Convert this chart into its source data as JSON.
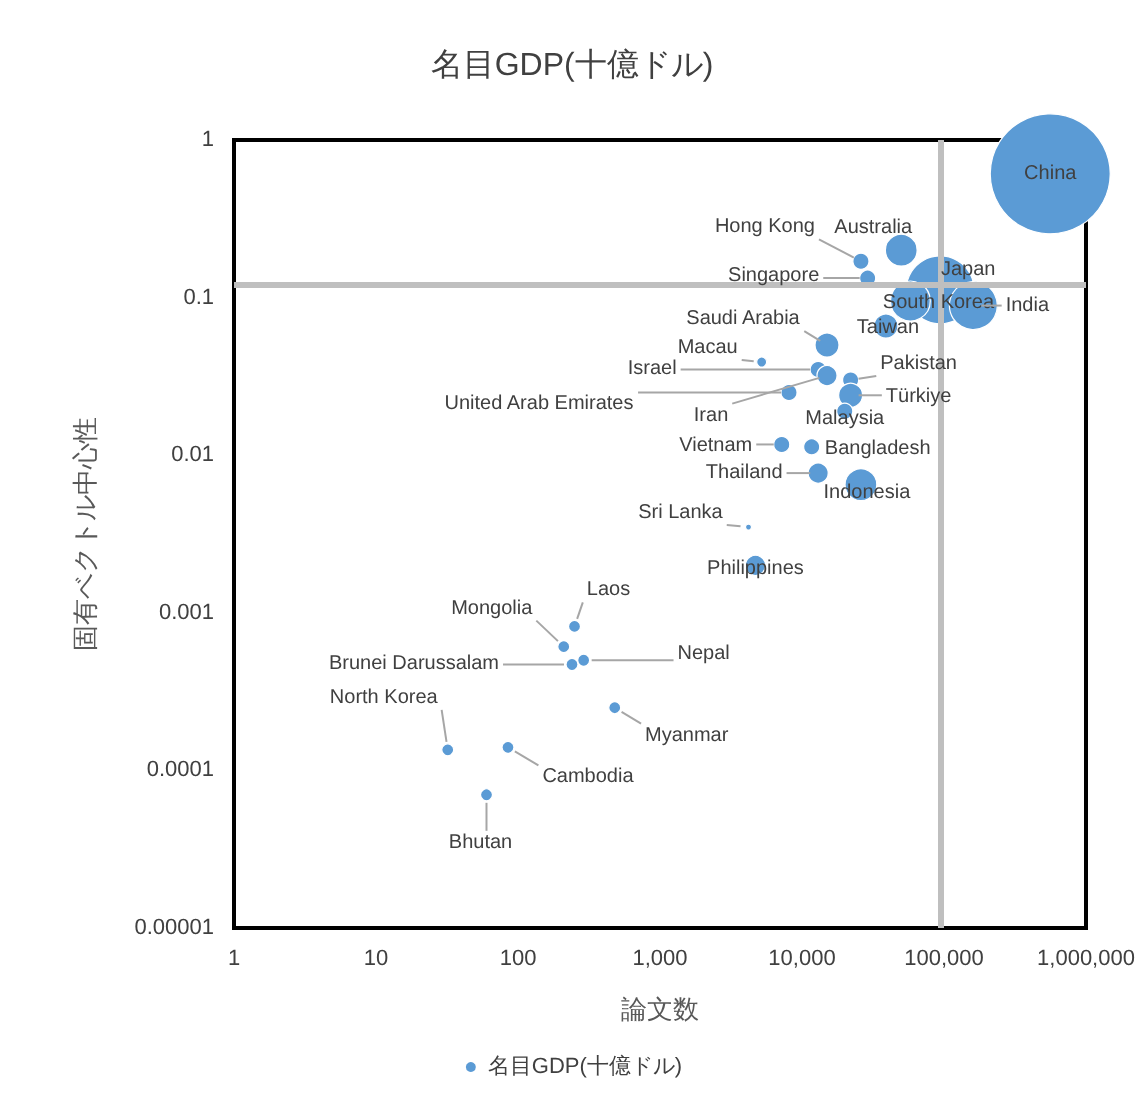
{
  "chart_data": {
    "type": "bubble",
    "title": "名目GDP(十億ドル)",
    "xlabel": "論文数",
    "ylabel": "固有ベクトル中心性",
    "log": "xy",
    "grid": false,
    "legend": "bottom",
    "xlim": [
      1,
      1000000
    ],
    "xticks": [
      1,
      10,
      100,
      {
        "value": 1000,
        "label": "1,000"
      },
      {
        "value": 10000,
        "label": "10,000"
      },
      {
        "value": 100000,
        "label": "100,000"
      },
      {
        "value": 1000000,
        "label": "1,000,000"
      }
    ],
    "ylim": [
      1e-05,
      1
    ],
    "yticks": [
      {
        "value": 1e-05,
        "label": "0.00001"
      },
      {
        "value": 0.0001,
        "label": "0.0001"
      },
      {
        "value": 0.001,
        "label": "0.001"
      },
      {
        "value": 0.01,
        "label": "0.01"
      },
      {
        "value": 0.1,
        "label": "0.1"
      },
      {
        "value": 1,
        "label": "1"
      }
    ],
    "ref_lines": [
      {
        "axis": "x",
        "value": 95000,
        "color": "#bfbfbf"
      },
      {
        "axis": "y",
        "value": 0.12,
        "color": "#bfbfbf"
      }
    ],
    "series": [
      {
        "name": "名目GDP(十億ドル)",
        "color": "#5b9bd5",
        "x": [
          560000,
          50000,
          26000,
          29000,
          94000,
          58000,
          161000,
          39000,
          15000,
          5200,
          13000,
          22000,
          8100,
          15000,
          22000,
          20000,
          7200,
          11700,
          13000,
          26000,
          4200,
          4700,
          250,
          210,
          240,
          290,
          480,
          32,
          85,
          60
        ],
        "values": [
          0.61,
          0.2,
          0.17,
          0.133,
          0.112,
          0.095,
          0.089,
          0.066,
          0.05,
          0.039,
          0.035,
          0.03,
          0.025,
          0.032,
          0.024,
          0.019,
          0.0117,
          0.0113,
          0.0077,
          0.0065,
          0.0035,
          0.002,
          0.00082,
          0.00061,
          0.00047,
          0.0005,
          0.00025,
          0.000135,
          0.00014,
          7e-05
        ],
        "sizes": [
          1,
          0.07,
          0.018,
          0.018,
          0.32,
          0.11,
          0.16,
          0.04,
          0.04,
          0.007,
          0.018,
          0.018,
          0.018,
          0.028,
          0.04,
          0.018,
          0.018,
          0.018,
          0.028,
          0.07,
          0.0025,
          0.028,
          0.01,
          0.01,
          0.01,
          0.01,
          0.01,
          0.01,
          0.01,
          0.01
        ]
      }
    ],
    "annotations": [
      {
        "text": "China",
        "x": 560000,
        "y": 0.61
      },
      {
        "text": "Australia",
        "x": 50000,
        "y": 0.2
      },
      {
        "text": "Hong Kong",
        "x": 26000,
        "y": 0.17
      },
      {
        "text": "Singapore",
        "x": 29000,
        "y": 0.133
      },
      {
        "text": "Japan",
        "x": 94000,
        "y": 0.112
      },
      {
        "text": "South Korea",
        "x": 58000,
        "y": 0.095
      },
      {
        "text": "India",
        "x": 161000,
        "y": 0.089
      },
      {
        "text": "Taiwan",
        "x": 39000,
        "y": 0.066
      },
      {
        "text": "Saudi Arabia",
        "x": 15000,
        "y": 0.05
      },
      {
        "text": "Macau",
        "x": 5200,
        "y": 0.039
      },
      {
        "text": "Israel",
        "x": 13000,
        "y": 0.035
      },
      {
        "text": "Pakistan",
        "x": 22000,
        "y": 0.03
      },
      {
        "text": "United Arab Emirates",
        "x": 8100,
        "y": 0.025
      },
      {
        "text": "Iran",
        "x": 15000,
        "y": 0.032
      },
      {
        "text": "Türkiye",
        "x": 22000,
        "y": 0.024
      },
      {
        "text": "Malaysia",
        "x": 20000,
        "y": 0.019
      },
      {
        "text": "Vietnam",
        "x": 7200,
        "y": 0.0117
      },
      {
        "text": "Bangladesh",
        "x": 11700,
        "y": 0.0113
      },
      {
        "text": "Thailand",
        "x": 13000,
        "y": 0.0077
      },
      {
        "text": "Indonesia",
        "x": 26000,
        "y": 0.0065
      },
      {
        "text": "Sri Lanka",
        "x": 4200,
        "y": 0.0035
      },
      {
        "text": "Philippines",
        "x": 4700,
        "y": 0.002
      },
      {
        "text": "Laos",
        "x": 250,
        "y": 0.00082
      },
      {
        "text": "Mongolia",
        "x": 210,
        "y": 0.00061
      },
      {
        "text": "Brunei Darussalam",
        "x": 240,
        "y": 0.00047
      },
      {
        "text": "Nepal",
        "x": 290,
        "y": 0.0005
      },
      {
        "text": "Myanmar",
        "x": 480,
        "y": 0.00025
      },
      {
        "text": "North Korea",
        "x": 32,
        "y": 0.000135
      },
      {
        "text": "Cambodia",
        "x": 85,
        "y": 0.00014
      },
      {
        "text": "Bhutan",
        "x": 60,
        "y": 7e-05
      }
    ]
  }
}
